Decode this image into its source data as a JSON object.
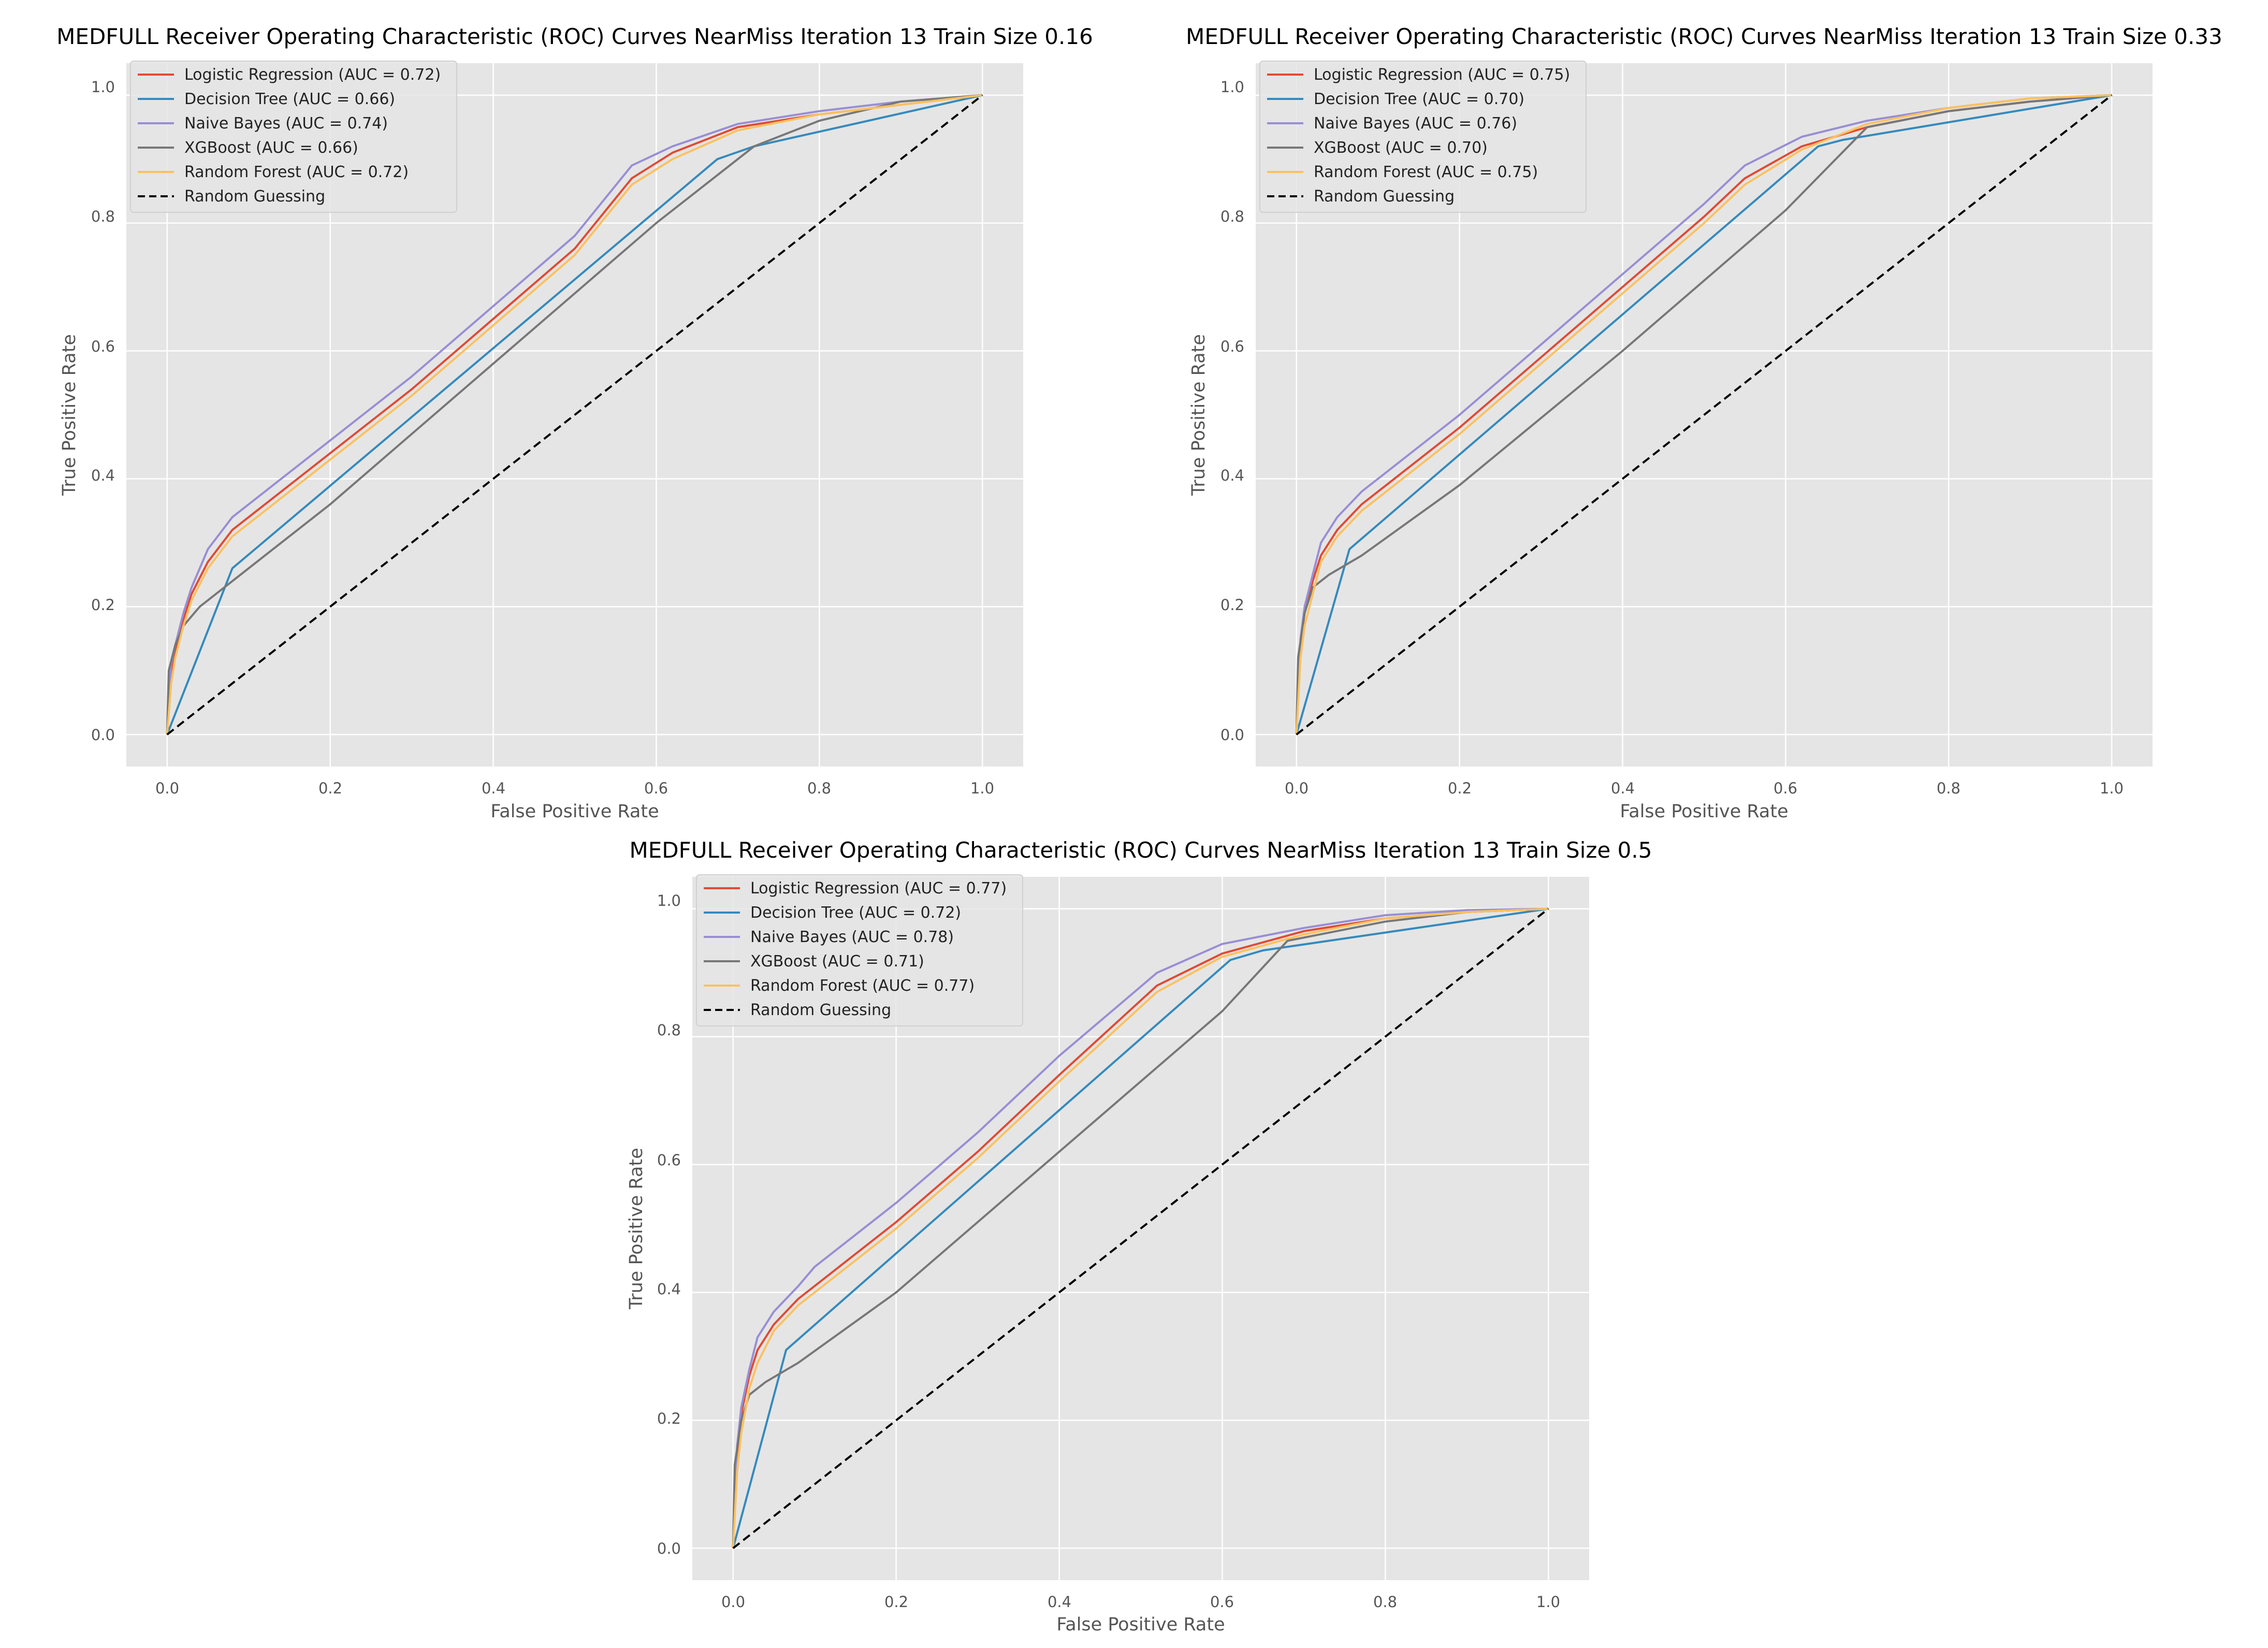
{
  "chart_data": [
    {
      "type": "line",
      "title": "MEDFULL Receiver Operating Characteristic (ROC) Curves NearMiss Iteration 13 Train Size 0.16",
      "xlabel": "False Positive Rate",
      "ylabel": "True Positive Rate",
      "xlim": [
        -0.05,
        1.05
      ],
      "ylim": [
        -0.05,
        1.05
      ],
      "xticks": [
        "0.0",
        "0.2",
        "0.4",
        "0.6",
        "0.8",
        "1.0"
      ],
      "yticks": [
        "0.0",
        "0.2",
        "0.4",
        "0.6",
        "0.8",
        "1.0"
      ],
      "grid": true,
      "legend_position": "top-left",
      "series": [
        {
          "name": "Logistic Regression (AUC = 0.72)",
          "color": "#e24a33",
          "dashed": false,
          "x": [
            0,
            0.005,
            0.01,
            0.02,
            0.03,
            0.05,
            0.08,
            0.12,
            0.2,
            0.3,
            0.4,
            0.5,
            0.57,
            0.62,
            0.7,
            0.8,
            0.9,
            1.0
          ],
          "y": [
            0,
            0.1,
            0.13,
            0.18,
            0.22,
            0.27,
            0.32,
            0.36,
            0.44,
            0.54,
            0.65,
            0.76,
            0.87,
            0.91,
            0.95,
            0.97,
            0.985,
            1.0
          ]
        },
        {
          "name": "Decision Tree (AUC = 0.66)",
          "color": "#348abd",
          "dashed": false,
          "x": [
            0,
            0.08,
            0.675,
            0.72,
            1.0
          ],
          "y": [
            0,
            0.26,
            0.9,
            0.92,
            1.0
          ]
        },
        {
          "name": "Naive Bayes (AUC = 0.74)",
          "color": "#988ed5",
          "dashed": false,
          "x": [
            0,
            0.005,
            0.01,
            0.02,
            0.03,
            0.05,
            0.08,
            0.12,
            0.2,
            0.3,
            0.4,
            0.5,
            0.57,
            0.62,
            0.7,
            0.8,
            0.9,
            1.0
          ],
          "y": [
            0,
            0.11,
            0.14,
            0.19,
            0.23,
            0.29,
            0.34,
            0.38,
            0.46,
            0.56,
            0.67,
            0.78,
            0.89,
            0.92,
            0.955,
            0.975,
            0.99,
            1.0
          ]
        },
        {
          "name": "XGBoost (AUC = 0.66)",
          "color": "#777777",
          "dashed": false,
          "x": [
            0,
            0.002,
            0.01,
            0.02,
            0.04,
            0.08,
            0.2,
            0.4,
            0.6,
            0.72,
            0.8,
            0.9,
            1.0
          ],
          "y": [
            0,
            0.1,
            0.14,
            0.17,
            0.2,
            0.24,
            0.36,
            0.58,
            0.8,
            0.92,
            0.96,
            0.99,
            1.0
          ]
        },
        {
          "name": "Random Forest (AUC = 0.72)",
          "color": "#fbc15e",
          "dashed": false,
          "x": [
            0,
            0.005,
            0.01,
            0.02,
            0.03,
            0.05,
            0.08,
            0.12,
            0.2,
            0.3,
            0.4,
            0.5,
            0.57,
            0.62,
            0.7,
            0.8,
            0.9,
            1.0
          ],
          "y": [
            0,
            0.08,
            0.12,
            0.17,
            0.21,
            0.26,
            0.31,
            0.35,
            0.43,
            0.53,
            0.64,
            0.75,
            0.86,
            0.9,
            0.945,
            0.97,
            0.985,
            1.0
          ]
        },
        {
          "name": "Random Guessing",
          "color": "#000000",
          "dashed": true,
          "x": [
            0,
            1
          ],
          "y": [
            0,
            1
          ]
        }
      ]
    },
    {
      "type": "line",
      "title": "MEDFULL Receiver Operating Characteristic (ROC) Curves NearMiss Iteration 13 Train Size 0.33",
      "xlabel": "False Positive Rate",
      "ylabel": "True Positive Rate",
      "xlim": [
        -0.05,
        1.05
      ],
      "ylim": [
        -0.05,
        1.05
      ],
      "xticks": [
        "0.0",
        "0.2",
        "0.4",
        "0.6",
        "0.8",
        "1.0"
      ],
      "yticks": [
        "0.0",
        "0.2",
        "0.4",
        "0.6",
        "0.8",
        "1.0"
      ],
      "grid": true,
      "legend_position": "top-left",
      "series": [
        {
          "name": "Logistic Regression (AUC = 0.75)",
          "color": "#e24a33",
          "dashed": false,
          "x": [
            0,
            0.005,
            0.01,
            0.02,
            0.03,
            0.05,
            0.08,
            0.12,
            0.2,
            0.3,
            0.4,
            0.5,
            0.55,
            0.62,
            0.7,
            0.8,
            0.9,
            1.0
          ],
          "y": [
            0,
            0.14,
            0.19,
            0.24,
            0.28,
            0.32,
            0.36,
            0.4,
            0.48,
            0.59,
            0.7,
            0.81,
            0.87,
            0.92,
            0.95,
            0.975,
            0.99,
            1.0
          ]
        },
        {
          "name": "Decision Tree (AUC = 0.70)",
          "color": "#348abd",
          "dashed": false,
          "x": [
            0,
            0.065,
            0.64,
            0.67,
            1.0
          ],
          "y": [
            0,
            0.29,
            0.92,
            0.93,
            1.0
          ]
        },
        {
          "name": "Naive Bayes (AUC = 0.76)",
          "color": "#988ed5",
          "dashed": false,
          "x": [
            0,
            0.005,
            0.01,
            0.02,
            0.03,
            0.05,
            0.08,
            0.12,
            0.2,
            0.3,
            0.4,
            0.5,
            0.55,
            0.62,
            0.7,
            0.8,
            0.9,
            1.0
          ],
          "y": [
            0,
            0.15,
            0.2,
            0.25,
            0.3,
            0.34,
            0.38,
            0.42,
            0.5,
            0.61,
            0.72,
            0.83,
            0.89,
            0.935,
            0.96,
            0.98,
            0.995,
            1.0
          ]
        },
        {
          "name": "XGBoost (AUC = 0.70)",
          "color": "#777777",
          "dashed": false,
          "x": [
            0,
            0.002,
            0.01,
            0.02,
            0.04,
            0.08,
            0.2,
            0.4,
            0.6,
            0.7,
            0.8,
            0.9,
            1.0
          ],
          "y": [
            0,
            0.12,
            0.19,
            0.23,
            0.25,
            0.28,
            0.39,
            0.6,
            0.82,
            0.95,
            0.975,
            0.99,
            1.0
          ]
        },
        {
          "name": "Random Forest (AUC = 0.75)",
          "color": "#fbc15e",
          "dashed": false,
          "x": [
            0,
            0.005,
            0.01,
            0.02,
            0.03,
            0.05,
            0.08,
            0.12,
            0.2,
            0.3,
            0.4,
            0.5,
            0.55,
            0.62,
            0.7,
            0.8,
            0.9,
            1.0
          ],
          "y": [
            0,
            0.12,
            0.17,
            0.22,
            0.27,
            0.31,
            0.35,
            0.39,
            0.47,
            0.58,
            0.69,
            0.8,
            0.86,
            0.915,
            0.955,
            0.98,
            0.995,
            1.0
          ]
        },
        {
          "name": "Random Guessing",
          "color": "#000000",
          "dashed": true,
          "x": [
            0,
            1
          ],
          "y": [
            0,
            1
          ]
        }
      ]
    },
    {
      "type": "line",
      "title": "MEDFULL Receiver Operating Characteristic (ROC) Curves NearMiss Iteration 13 Train Size 0.5",
      "xlabel": "False Positive Rate",
      "ylabel": "True Positive Rate",
      "xlim": [
        -0.05,
        1.05
      ],
      "ylim": [
        -0.05,
        1.05
      ],
      "xticks": [
        "0.0",
        "0.2",
        "0.4",
        "0.6",
        "0.8",
        "1.0"
      ],
      "yticks": [
        "0.0",
        "0.2",
        "0.4",
        "0.6",
        "0.8",
        "1.0"
      ],
      "grid": true,
      "legend_position": "top-left",
      "series": [
        {
          "name": "Logistic Regression (AUC = 0.77)",
          "color": "#e24a33",
          "dashed": false,
          "x": [
            0,
            0.005,
            0.01,
            0.02,
            0.03,
            0.05,
            0.08,
            0.12,
            0.2,
            0.3,
            0.4,
            0.52,
            0.6,
            0.7,
            0.8,
            0.9,
            1.0
          ],
          "y": [
            0,
            0.15,
            0.21,
            0.27,
            0.31,
            0.35,
            0.39,
            0.43,
            0.51,
            0.62,
            0.74,
            0.88,
            0.93,
            0.965,
            0.985,
            0.995,
            1.0
          ]
        },
        {
          "name": "Decision Tree (AUC = 0.72)",
          "color": "#348abd",
          "dashed": false,
          "x": [
            0,
            0.065,
            0.61,
            0.65,
            1.0
          ],
          "y": [
            0,
            0.31,
            0.92,
            0.935,
            1.0
          ]
        },
        {
          "name": "Naive Bayes (AUC = 0.78)",
          "color": "#988ed5",
          "dashed": false,
          "x": [
            0,
            0.005,
            0.01,
            0.02,
            0.03,
            0.05,
            0.08,
            0.1,
            0.2,
            0.3,
            0.4,
            0.52,
            0.6,
            0.7,
            0.8,
            0.9,
            1.0
          ],
          "y": [
            0,
            0.16,
            0.22,
            0.28,
            0.33,
            0.37,
            0.41,
            0.44,
            0.54,
            0.65,
            0.77,
            0.9,
            0.945,
            0.97,
            0.99,
            0.998,
            1.0
          ]
        },
        {
          "name": "XGBoost (AUC = 0.71)",
          "color": "#777777",
          "dashed": false,
          "x": [
            0,
            0.002,
            0.01,
            0.02,
            0.04,
            0.08,
            0.2,
            0.4,
            0.6,
            0.68,
            0.8,
            0.9,
            1.0
          ],
          "y": [
            0,
            0.13,
            0.2,
            0.24,
            0.26,
            0.29,
            0.4,
            0.62,
            0.84,
            0.95,
            0.98,
            0.995,
            1.0
          ]
        },
        {
          "name": "Random Forest (AUC = 0.77)",
          "color": "#fbc15e",
          "dashed": false,
          "x": [
            0,
            0.005,
            0.01,
            0.02,
            0.03,
            0.05,
            0.08,
            0.12,
            0.2,
            0.3,
            0.4,
            0.52,
            0.6,
            0.7,
            0.8,
            0.9,
            1.0
          ],
          "y": [
            0,
            0.12,
            0.18,
            0.25,
            0.29,
            0.34,
            0.38,
            0.42,
            0.5,
            0.61,
            0.73,
            0.87,
            0.925,
            0.96,
            0.985,
            0.995,
            1.0
          ]
        },
        {
          "name": "Random Guessing",
          "color": "#000000",
          "dashed": true,
          "x": [
            0,
            1
          ],
          "y": [
            0,
            1
          ]
        }
      ]
    }
  ]
}
